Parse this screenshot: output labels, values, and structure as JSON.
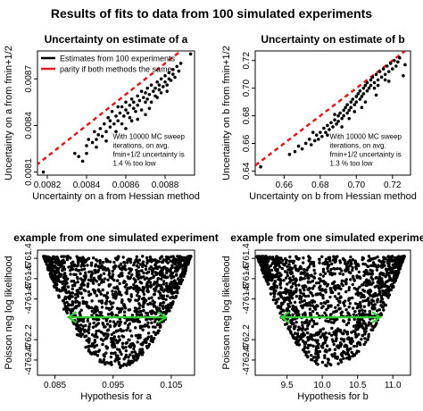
{
  "figure_title": "Results of fits to data from 100 simulated experiments",
  "colors": {
    "points": "#000000",
    "parity": "#e31a1c",
    "arrow": "#33cc33"
  },
  "chart_data": [
    {
      "type": "scatter",
      "title": "Uncertainty on estimate of a",
      "xlabel": "Uncertainty on a from Hessian method",
      "ylabel": "Uncertainty on a from fmin+1/2",
      "xlim": [
        0.00815,
        0.00895
      ],
      "ylim": [
        0.00808,
        0.00888
      ],
      "x_ticks": [
        0.0082,
        0.0084,
        0.0086,
        0.0088
      ],
      "x_tick_labels": [
        "0.0082",
        "0.0084",
        "0.0086",
        "0.0088"
      ],
      "y_ticks": [
        0.0081,
        0.0084,
        0.0087
      ],
      "y_tick_labels": [
        "0.0081",
        "0.0084",
        "0.0087"
      ],
      "legend_position": "top-left",
      "legend": [
        {
          "label": "Estimates from 100 experiments",
          "color": "#000000",
          "style": "solid"
        },
        {
          "label": "parity if both methods the same",
          "color": "#e31a1c",
          "style": "solid"
        }
      ],
      "annotation": [
        "With 10000 MC sweep",
        "iterations, on avg.",
        "fmin+1/2 uncertainty is",
        "1.4 % too low"
      ],
      "parity_line": true,
      "points": [
        [
          0.00818,
          0.0081
        ],
        [
          0.00834,
          0.00822
        ],
        [
          0.00836,
          0.0082
        ],
        [
          0.00838,
          0.00817
        ],
        [
          0.0084,
          0.00827
        ],
        [
          0.0084,
          0.00822
        ],
        [
          0.00841,
          0.00831
        ],
        [
          0.00843,
          0.00829
        ],
        [
          0.00844,
          0.00836
        ],
        [
          0.00845,
          0.00826
        ],
        [
          0.00846,
          0.00834
        ],
        [
          0.00847,
          0.00838
        ],
        [
          0.00848,
          0.00833
        ],
        [
          0.00849,
          0.00841
        ],
        [
          0.0085,
          0.00836
        ],
        [
          0.00851,
          0.00845
        ],
        [
          0.00852,
          0.00839
        ],
        [
          0.00852,
          0.00843
        ],
        [
          0.00853,
          0.00849
        ],
        [
          0.00854,
          0.00841
        ],
        [
          0.00855,
          0.00846
        ],
        [
          0.00856,
          0.00852
        ],
        [
          0.00856,
          0.00843
        ],
        [
          0.00857,
          0.00848
        ],
        [
          0.00858,
          0.00841
        ],
        [
          0.00858,
          0.00852
        ],
        [
          0.00859,
          0.00846
        ],
        [
          0.0086,
          0.0085
        ],
        [
          0.0086,
          0.00855
        ],
        [
          0.00861,
          0.00848
        ],
        [
          0.00862,
          0.00853
        ],
        [
          0.00862,
          0.00845
        ],
        [
          0.00863,
          0.00857
        ],
        [
          0.00864,
          0.00851
        ],
        [
          0.00864,
          0.00855
        ],
        [
          0.00865,
          0.00849
        ],
        [
          0.00866,
          0.00859
        ],
        [
          0.00866,
          0.00853
        ],
        [
          0.00867,
          0.00856
        ],
        [
          0.00868,
          0.00862
        ],
        [
          0.00868,
          0.0085
        ],
        [
          0.00869,
          0.00858
        ],
        [
          0.0087,
          0.00855
        ],
        [
          0.0087,
          0.00861
        ],
        [
          0.00871,
          0.00864
        ],
        [
          0.00871,
          0.00857
        ],
        [
          0.00872,
          0.0086
        ],
        [
          0.00873,
          0.00866
        ],
        [
          0.00873,
          0.00855
        ],
        [
          0.00874,
          0.00862
        ],
        [
          0.00875,
          0.00864
        ],
        [
          0.00875,
          0.00859
        ],
        [
          0.00876,
          0.00868
        ],
        [
          0.00877,
          0.00863
        ],
        [
          0.00877,
          0.00866
        ],
        [
          0.00878,
          0.0087
        ],
        [
          0.00878,
          0.00861
        ],
        [
          0.00879,
          0.00865
        ],
        [
          0.0088,
          0.00868
        ],
        [
          0.0088,
          0.00872
        ],
        [
          0.00881,
          0.00866
        ],
        [
          0.00882,
          0.0087
        ],
        [
          0.00882,
          0.00874
        ],
        [
          0.00883,
          0.00869
        ],
        [
          0.00884,
          0.00873
        ],
        [
          0.00884,
          0.00876
        ],
        [
          0.00885,
          0.00871
        ],
        [
          0.00886,
          0.00878
        ],
        [
          0.00887,
          0.00875
        ],
        [
          0.00888,
          0.0088
        ],
        [
          0.00855,
          0.00836
        ],
        [
          0.0086,
          0.00838
        ],
        [
          0.00866,
          0.00844
        ],
        [
          0.00872,
          0.00851
        ],
        [
          0.00845,
          0.00831
        ],
        [
          0.0085,
          0.0083
        ],
        [
          0.0087,
          0.00847
        ],
        [
          0.00876,
          0.00858
        ],
        [
          0.00881,
          0.00862
        ],
        [
          0.00863,
          0.00843
        ],
        [
          0.00893,
          0.00886
        ]
      ]
    },
    {
      "type": "scatter",
      "title": "Uncertainty on estimate of b",
      "xlabel": "Uncertainty on b from Hessian method",
      "ylabel": "Uncertainty on b from fmin+1/2",
      "xlim": [
        0.644,
        0.73
      ],
      "ylim": [
        0.637,
        0.727
      ],
      "x_ticks": [
        0.66,
        0.68,
        0.7,
        0.72
      ],
      "x_tick_labels": [
        "0.66",
        "0.68",
        "0.70",
        "0.72"
      ],
      "y_ticks": [
        0.64,
        0.66,
        0.68,
        0.7,
        0.72
      ],
      "y_tick_labels": [
        "0.64",
        "0.66",
        "0.68",
        "0.70",
        "0.72"
      ],
      "annotation": [
        "With 10000 MC sweep",
        "iterations, on avg.",
        "fmin+1/2 uncertainty is",
        "1.3 % too low"
      ],
      "parity_line": true,
      "points": [
        [
          0.647,
          0.643
        ],
        [
          0.663,
          0.652
        ],
        [
          0.666,
          0.654
        ],
        [
          0.668,
          0.658
        ],
        [
          0.67,
          0.656
        ],
        [
          0.672,
          0.66
        ],
        [
          0.674,
          0.663
        ],
        [
          0.675,
          0.659
        ],
        [
          0.677,
          0.662
        ],
        [
          0.678,
          0.666
        ],
        [
          0.679,
          0.663
        ],
        [
          0.68,
          0.668
        ],
        [
          0.681,
          0.665
        ],
        [
          0.682,
          0.671
        ],
        [
          0.683,
          0.668
        ],
        [
          0.684,
          0.673
        ],
        [
          0.685,
          0.67
        ],
        [
          0.686,
          0.675
        ],
        [
          0.687,
          0.672
        ],
        [
          0.688,
          0.677
        ],
        [
          0.689,
          0.674
        ],
        [
          0.69,
          0.68
        ],
        [
          0.69,
          0.676
        ],
        [
          0.691,
          0.682
        ],
        [
          0.692,
          0.678
        ],
        [
          0.693,
          0.684
        ],
        [
          0.693,
          0.68
        ],
        [
          0.694,
          0.686
        ],
        [
          0.695,
          0.682
        ],
        [
          0.695,
          0.688
        ],
        [
          0.696,
          0.684
        ],
        [
          0.697,
          0.69
        ],
        [
          0.697,
          0.686
        ],
        [
          0.698,
          0.692
        ],
        [
          0.699,
          0.688
        ],
        [
          0.7,
          0.694
        ],
        [
          0.7,
          0.69
        ],
        [
          0.701,
          0.696
        ],
        [
          0.702,
          0.692
        ],
        [
          0.702,
          0.698
        ],
        [
          0.703,
          0.694
        ],
        [
          0.704,
          0.7
        ],
        [
          0.704,
          0.696
        ],
        [
          0.705,
          0.702
        ],
        [
          0.706,
          0.698
        ],
        [
          0.706,
          0.704
        ],
        [
          0.707,
          0.7
        ],
        [
          0.708,
          0.706
        ],
        [
          0.708,
          0.702
        ],
        [
          0.709,
          0.708
        ],
        [
          0.71,
          0.704
        ],
        [
          0.71,
          0.7
        ],
        [
          0.711,
          0.71
        ],
        [
          0.712,
          0.706
        ],
        [
          0.712,
          0.702
        ],
        [
          0.713,
          0.712
        ],
        [
          0.714,
          0.708
        ],
        [
          0.715,
          0.714
        ],
        [
          0.716,
          0.71
        ],
        [
          0.716,
          0.706
        ],
        [
          0.717,
          0.716
        ],
        [
          0.718,
          0.712
        ],
        [
          0.719,
          0.718
        ],
        [
          0.72,
          0.714
        ],
        [
          0.721,
          0.72
        ],
        [
          0.722,
          0.716
        ],
        [
          0.723,
          0.719
        ],
        [
          0.724,
          0.722
        ],
        [
          0.726,
          0.709
        ],
        [
          0.727,
          0.717
        ],
        [
          0.676,
          0.668
        ],
        [
          0.684,
          0.666
        ],
        [
          0.692,
          0.672
        ],
        [
          0.699,
          0.683
        ],
        [
          0.705,
          0.69
        ],
        [
          0.711,
          0.695
        ],
        [
          0.718,
          0.705
        ],
        [
          0.688,
          0.681
        ],
        [
          0.696,
          0.678
        ],
        [
          0.703,
          0.686
        ]
      ]
    },
    {
      "type": "scatter",
      "title": "example from one simulated experiment",
      "xlabel": "Hypothesis for a",
      "ylabel": "Poisson neg log likelihood",
      "xlim": [
        0.082,
        0.109
      ],
      "ylim": [
        -4762.55,
        -4761.32
      ],
      "x_ticks": [
        0.085,
        0.095,
        0.105
      ],
      "x_tick_labels": [
        "0.085",
        "0.095",
        "0.105"
      ],
      "y_ticks": [
        -4762.4,
        -4762.2,
        -4761.8,
        -4761.6,
        -4761.4
      ],
      "y_tick_labels": [
        "-4762.4",
        "-4762.2",
        "-4761.8",
        "-4761.6",
        "-4761.4"
      ],
      "parabola": {
        "center": 0.0957,
        "min": -4762.48,
        "half_width": 0.0085,
        "top": -4761.38
      },
      "arrow": {
        "x_from": 0.0873,
        "x_to": 0.1041,
        "y": -4761.98
      }
    },
    {
      "type": "scatter",
      "title": "example from one simulated experiment",
      "xlabel": "Hypothesis for b",
      "ylabel": "Poisson neg log likelihood",
      "xlim": [
        9.05,
        11.25
      ],
      "ylim": [
        -4762.55,
        -4761.32
      ],
      "x_ticks": [
        9.5,
        10.0,
        10.5,
        11.0
      ],
      "x_tick_labels": [
        "9.5",
        "10.0",
        "10.5",
        "11.0"
      ],
      "y_ticks": [
        -4762.4,
        -4762.2,
        -4761.8,
        -4761.6,
        -4761.4
      ],
      "y_tick_labels": [
        "-4762.4",
        "-4762.2",
        "-4761.8",
        "-4761.6",
        "-4761.4"
      ],
      "parabola": {
        "center": 10.12,
        "min": -4762.48,
        "half_width": 0.7,
        "top": -4761.38
      },
      "arrow": {
        "x_from": 9.42,
        "x_to": 10.82,
        "y": -4761.98
      }
    }
  ]
}
